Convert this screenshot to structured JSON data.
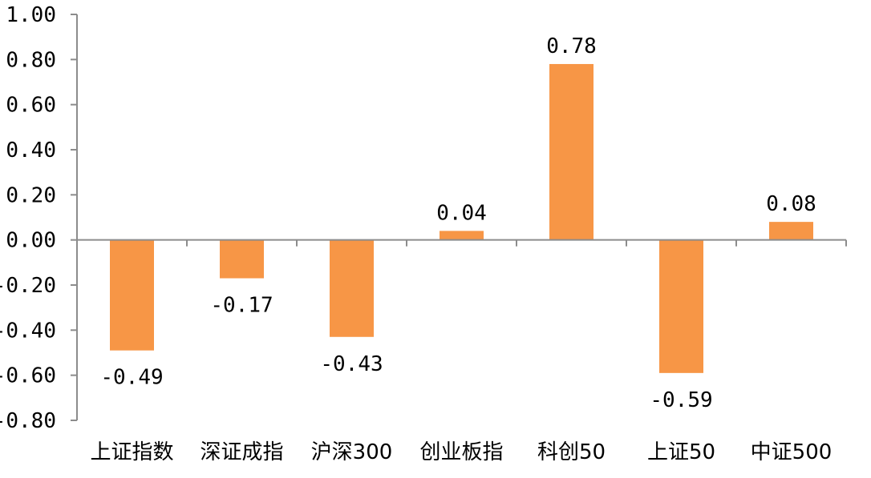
{
  "chart_data": {
    "type": "bar",
    "title": "",
    "xlabel": "",
    "ylabel": "",
    "categories": [
      "上证指数",
      "深证成指",
      "沪深300",
      "创业板指",
      "科创50",
      "上证50",
      "中证500"
    ],
    "values": [
      -0.49,
      -0.17,
      -0.43,
      0.04,
      0.78,
      -0.59,
      0.08
    ],
    "data_labels": [
      "-0.49",
      "-0.17",
      "-0.43",
      "0.04",
      "0.78",
      "-0.59",
      "0.08"
    ],
    "ylim": [
      -0.8,
      1.0
    ],
    "yticks": [
      1.0,
      0.8,
      0.6,
      0.4,
      0.2,
      0.0,
      -0.2,
      -0.4,
      -0.6,
      -0.8
    ],
    "ytick_labels": [
      "1.00",
      "0.80",
      "0.60",
      "0.40",
      "0.20",
      "0.00",
      "-0.20",
      "-0.40",
      "-0.60",
      "-0.80"
    ],
    "bar_color": "#F79646",
    "axis_color": "#8c8c8c",
    "grid": false,
    "legend": "none"
  }
}
